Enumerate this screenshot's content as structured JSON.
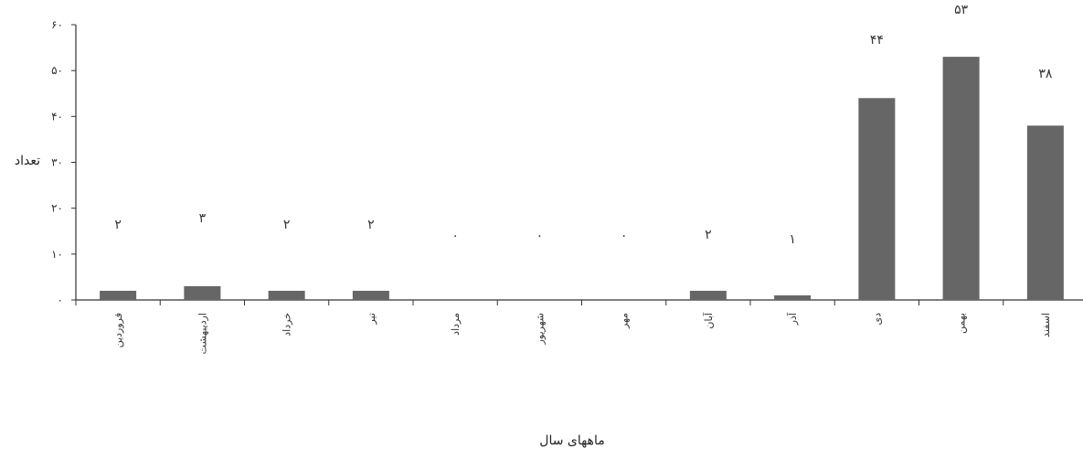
{
  "chart_data": {
    "type": "bar",
    "title": "",
    "xlabel": "ماههای سال",
    "ylabel": "تعداد",
    "ylim": [
      0,
      60
    ],
    "yticks": [
      "۰",
      "۱۰",
      "۲۰",
      "۳۰",
      "۴۰",
      "۵۰",
      "۶۰"
    ],
    "categories": [
      "فروردین",
      "اردیبهشت",
      "خرداد",
      "تیر",
      "مرداد",
      "شهریور",
      "مهر",
      "آبان",
      "آذر",
      "دی",
      "بهمن",
      "اسفند"
    ],
    "values": [
      2,
      3,
      2,
      2,
      0,
      0,
      0,
      2,
      1,
      44,
      53,
      38
    ],
    "value_labels": [
      "۲",
      "۳",
      "۲",
      "۲",
      "۰",
      "۰",
      "۰",
      "۲",
      "۱",
      "۴۴",
      "۵۳",
      "۳۸"
    ],
    "bar_color": "#666666",
    "grid": false,
    "legend": "none"
  }
}
